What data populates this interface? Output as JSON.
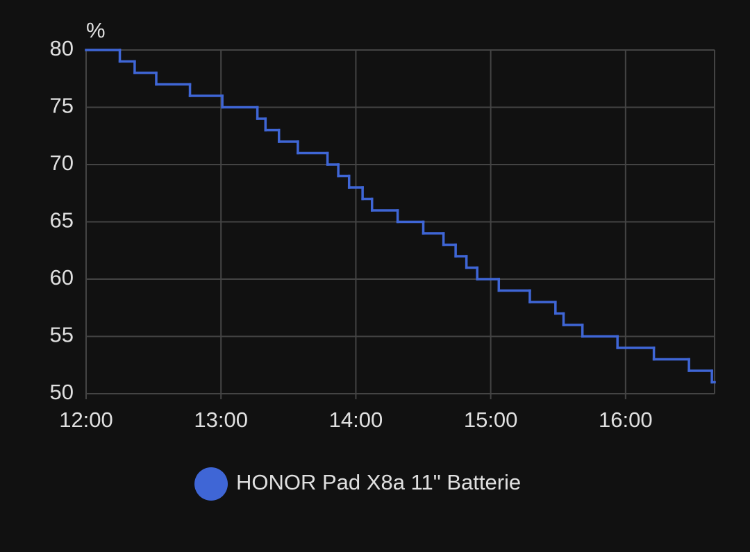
{
  "chart_data": {
    "type": "step-line",
    "y_unit": "%",
    "x": [
      12,
      12.25,
      12.36,
      12.52,
      12.77,
      13.01,
      13.27,
      13.33,
      13.43,
      13.57,
      13.79,
      13.87,
      13.95,
      14.05,
      14.12,
      14.31,
      14.5,
      14.65,
      14.74,
      14.82,
      14.9,
      15.06,
      15.29,
      15.48,
      15.54,
      15.68,
      15.94,
      16.21,
      16.47,
      16.64
    ],
    "series": [
      {
        "name": "HONOR Pad X8a 11\" Batterie",
        "color": "#3f66d6",
        "values": [
          80,
          79,
          78,
          77,
          76,
          75,
          74,
          73,
          72,
          71,
          70,
          69,
          68,
          67,
          66,
          65,
          64,
          63,
          62,
          61,
          60,
          59,
          58,
          57,
          56,
          55,
          54,
          53,
          52,
          51
        ]
      }
    ],
    "xlim": [
      12,
      16.66
    ],
    "xticks": [
      {
        "value": 12,
        "label": "12:00"
      },
      {
        "value": 13,
        "label": "13:00"
      },
      {
        "value": 14,
        "label": "14:00"
      },
      {
        "value": 15,
        "label": "15:00"
      },
      {
        "value": 16,
        "label": "16:00"
      }
    ],
    "ylim": [
      50,
      80
    ],
    "yticks": [
      50,
      55,
      60,
      65,
      70,
      75,
      80
    ],
    "grid": true
  }
}
